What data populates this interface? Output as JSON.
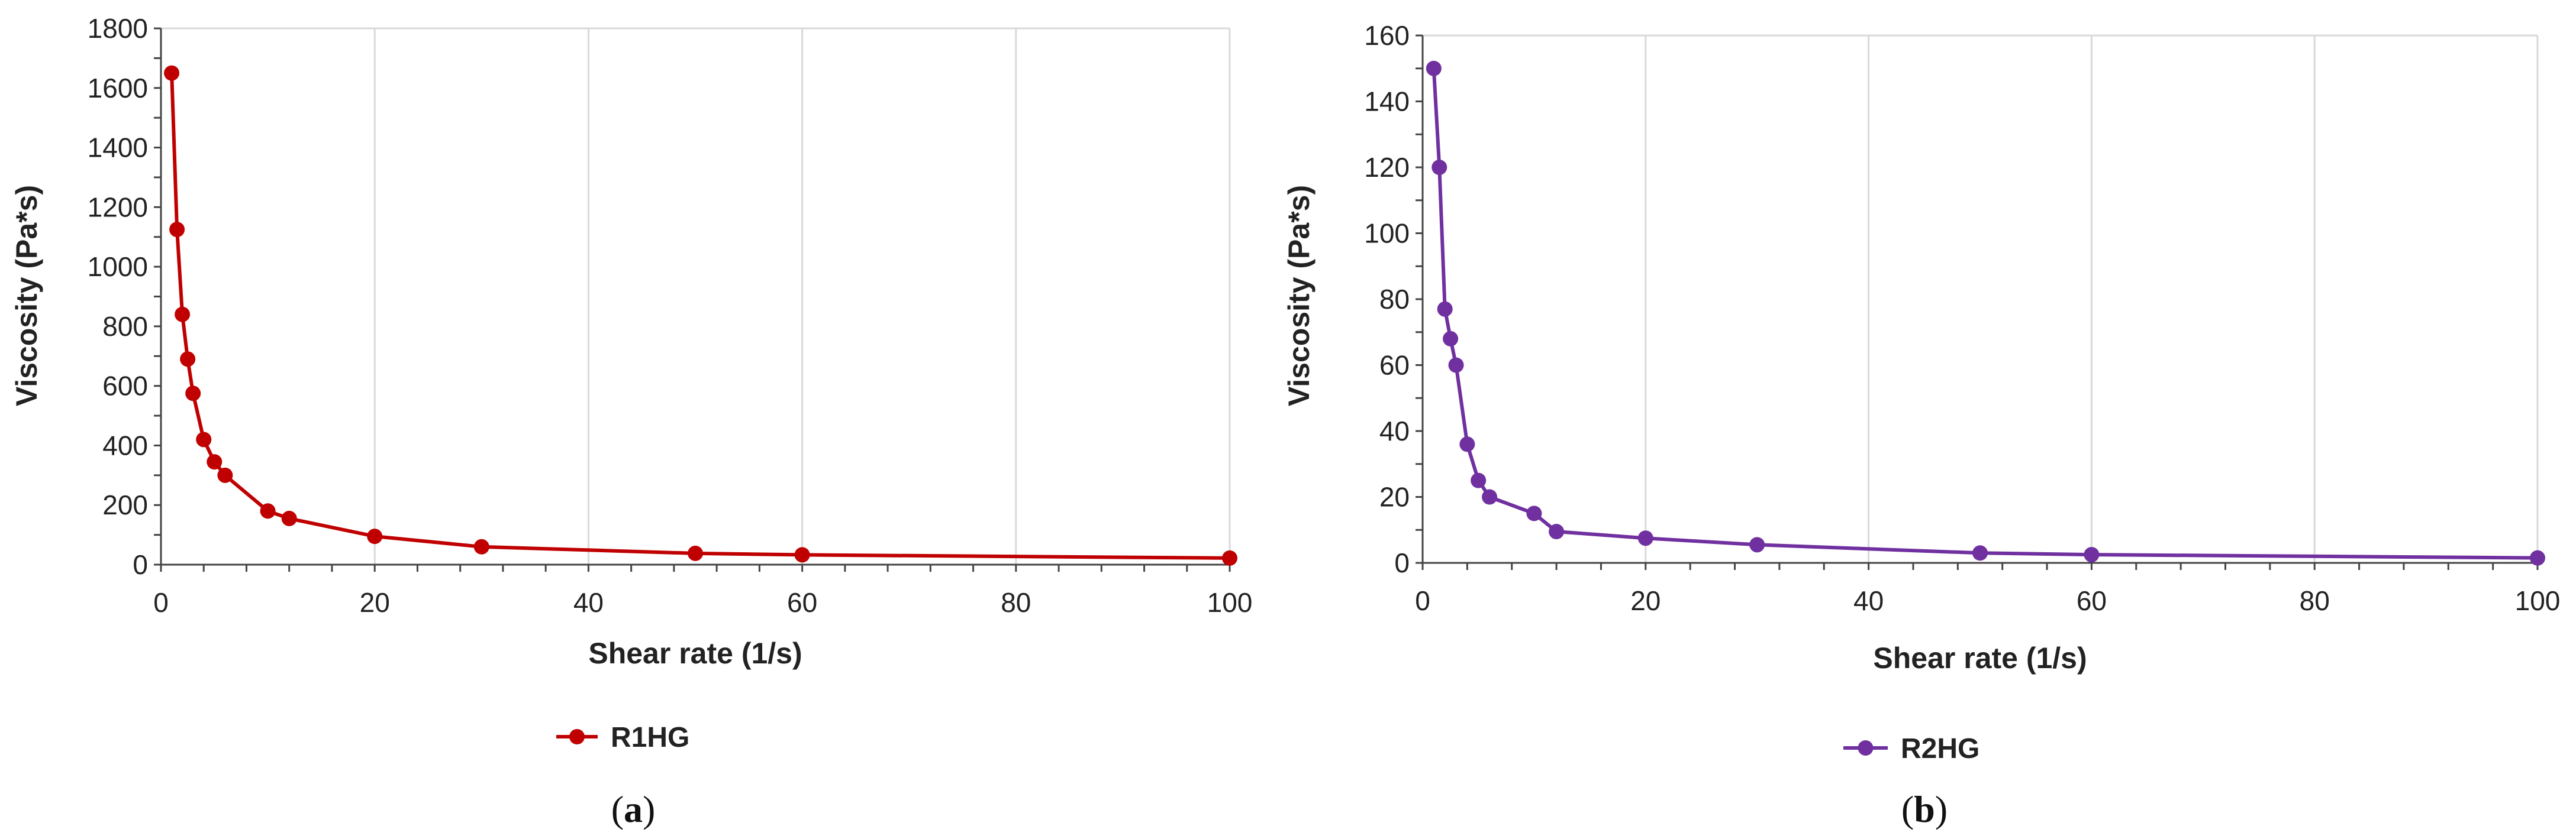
{
  "chart_data": [
    {
      "type": "line",
      "caption_letter": "a",
      "xlabel": "Shear rate (1/s)",
      "ylabel": "Viscosity (Pa*s)",
      "xlim": [
        0,
        100
      ],
      "ylim": [
        0,
        1800
      ],
      "x_ticks": [
        0,
        20,
        40,
        60,
        80,
        100
      ],
      "y_ticks": [
        0,
        200,
        400,
        600,
        800,
        1000,
        1200,
        1400,
        1600,
        1800
      ],
      "grid": "vertical",
      "legend_position": "bottom",
      "series": [
        {
          "name": "R1HG",
          "color": "#c00000",
          "x": [
            1,
            1.5,
            2,
            2.5,
            3,
            4,
            5,
            6,
            10,
            12,
            20,
            30,
            50,
            60,
            100
          ],
          "y": [
            1650,
            1125,
            840,
            690,
            575,
            420,
            345,
            300,
            180,
            155,
            95,
            60,
            38,
            33,
            22
          ]
        }
      ]
    },
    {
      "type": "line",
      "caption_letter": "b",
      "xlabel": "Shear rate (1/s)",
      "ylabel": "Viscosity (Pa*s)",
      "xlim": [
        0,
        100
      ],
      "ylim": [
        0,
        160
      ],
      "x_ticks": [
        0,
        20,
        40,
        60,
        80,
        100
      ],
      "y_ticks": [
        0,
        20,
        40,
        60,
        80,
        100,
        120,
        140,
        160
      ],
      "grid": "vertical",
      "legend_position": "bottom",
      "series": [
        {
          "name": "R2HG",
          "color": "#7030a0",
          "x": [
            1,
            1.5,
            2,
            2.5,
            3,
            4,
            5,
            6,
            10,
            12,
            20,
            30,
            50,
            60,
            100
          ],
          "y": [
            150,
            120,
            77,
            68,
            60,
            36,
            25,
            20,
            15,
            9.5,
            7.5,
            5.5,
            3,
            2.5,
            1.5
          ]
        }
      ]
    }
  ]
}
